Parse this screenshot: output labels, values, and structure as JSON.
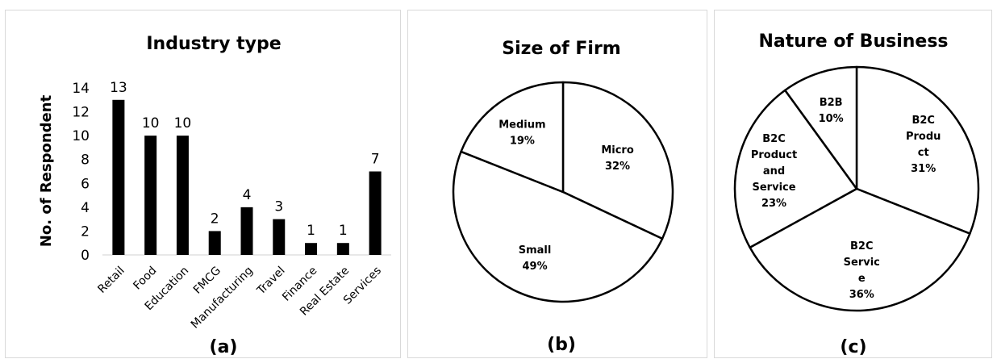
{
  "chart_data": [
    {
      "type": "bar",
      "title": "Industry type",
      "ylabel": "No. of Respondent",
      "xlabel": "",
      "caption": "(a)",
      "categories": [
        "Retail",
        "Food",
        "Education",
        "FMCG",
        "Manufacturing",
        "Travel",
        "Finance",
        "Real Estate",
        "Services"
      ],
      "values": [
        13,
        10,
        10,
        2,
        4,
        3,
        1,
        1,
        7
      ],
      "ylim": [
        0,
        14
      ],
      "yticks": [
        0,
        2,
        4,
        6,
        8,
        10,
        12,
        14
      ],
      "grid": false,
      "bar_color": "#000000"
    },
    {
      "type": "pie",
      "title": "Size of Firm",
      "caption": "(b)",
      "slices": [
        {
          "label": "Micro",
          "percent_text": "32%",
          "value": 32
        },
        {
          "label": "Small",
          "percent_text": "49%",
          "value": 49
        },
        {
          "label": "Medium",
          "percent_text": "19%",
          "value": 19
        }
      ],
      "fill_color": "#ffffff",
      "stroke_color": "#000000"
    },
    {
      "type": "pie",
      "title": "Nature of Business",
      "caption": "(c)",
      "slices": [
        {
          "label_lines": [
            "B2C",
            "Produ",
            "ct"
          ],
          "percent_text": "31%",
          "value": 31
        },
        {
          "label_lines": [
            "B2C",
            "Servic",
            "e"
          ],
          "percent_text": "36%",
          "value": 36
        },
        {
          "label_lines": [
            "B2C",
            "Product",
            "and",
            "Service"
          ],
          "percent_text": "23%",
          "value": 23
        },
        {
          "label_lines": [
            "B2B"
          ],
          "percent_text": "10%",
          "value": 10
        }
      ],
      "fill_color": "#ffffff",
      "stroke_color": "#000000"
    }
  ]
}
